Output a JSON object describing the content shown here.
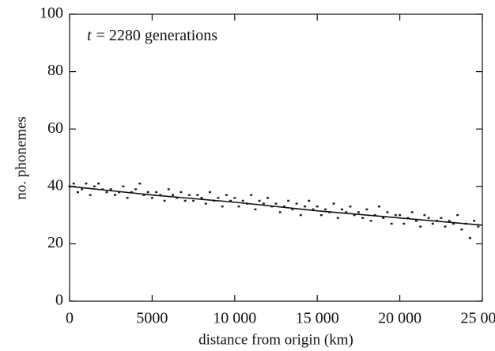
{
  "chart_data": {
    "type": "scatter",
    "xlabel": "distance from origin (km)",
    "ylabel": "no. phonemes",
    "annotation": {
      "var": "t",
      "text": "= 2280 generations"
    },
    "xlim": [
      0,
      25000
    ],
    "ylim": [
      0,
      100
    ],
    "xticks": [
      0,
      5000,
      {
        "value": 10000,
        "label": "10 000"
      },
      {
        "value": 15000,
        "label": "15 000"
      },
      {
        "value": 20000,
        "label": "20 000"
      },
      {
        "value": 25000,
        "label": "25 000"
      }
    ],
    "yticks": [
      0,
      20,
      40,
      60,
      80,
      100
    ],
    "points": {
      "color": "#222",
      "x": [
        0,
        250,
        500,
        750,
        1000,
        1250,
        1500,
        1750,
        2000,
        2250,
        2500,
        2750,
        3000,
        3250,
        3500,
        3750,
        4000,
        4250,
        4500,
        4750,
        5000,
        5250,
        5500,
        5750,
        6000,
        6250,
        6500,
        6750,
        7000,
        7250,
        7500,
        7750,
        8000,
        8250,
        8500,
        8750,
        9000,
        9250,
        9500,
        9750,
        10000,
        10250,
        10500,
        10750,
        11000,
        11250,
        11500,
        11750,
        12000,
        12250,
        12500,
        12750,
        13000,
        13250,
        13500,
        13750,
        14000,
        14250,
        14500,
        14750,
        15000,
        15250,
        15500,
        15750,
        16000,
        16250,
        16500,
        16750,
        17000,
        17250,
        17500,
        17750,
        18000,
        18250,
        18500,
        18750,
        19000,
        19250,
        19500,
        19750,
        20000,
        20250,
        20500,
        20750,
        21000,
        21250,
        21500,
        21750,
        22000,
        22250,
        22500,
        22750,
        23000,
        23250,
        23500,
        23750,
        24000,
        24250,
        24500,
        24750
      ],
      "y": [
        40,
        41,
        38,
        39,
        41,
        37,
        40,
        41,
        39,
        38,
        39,
        37,
        38,
        40,
        36,
        38,
        39,
        41,
        37,
        38,
        36,
        38,
        37,
        35,
        39,
        37,
        36,
        38,
        35,
        37,
        35,
        37,
        36,
        34,
        38,
        35,
        36,
        33,
        37,
        35,
        36,
        33,
        35,
        34,
        37,
        32,
        35,
        34,
        36,
        33,
        34,
        31,
        33,
        35,
        32,
        34,
        30,
        33,
        35,
        32,
        33,
        30,
        32,
        31,
        34,
        29,
        32,
        31,
        33,
        30,
        31,
        29,
        32,
        28,
        30,
        33,
        29,
        31,
        27,
        30,
        30,
        27,
        29,
        31,
        28,
        26,
        30,
        29,
        27,
        28,
        29,
        26,
        28,
        27,
        30,
        25,
        27,
        22,
        28,
        26
      ]
    },
    "trend": {
      "color": "#111",
      "x": [
        0,
        5000,
        10000,
        15000,
        20000,
        25000
      ],
      "y": [
        40,
        37,
        34.5,
        31.5,
        29,
        26.5
      ]
    }
  }
}
